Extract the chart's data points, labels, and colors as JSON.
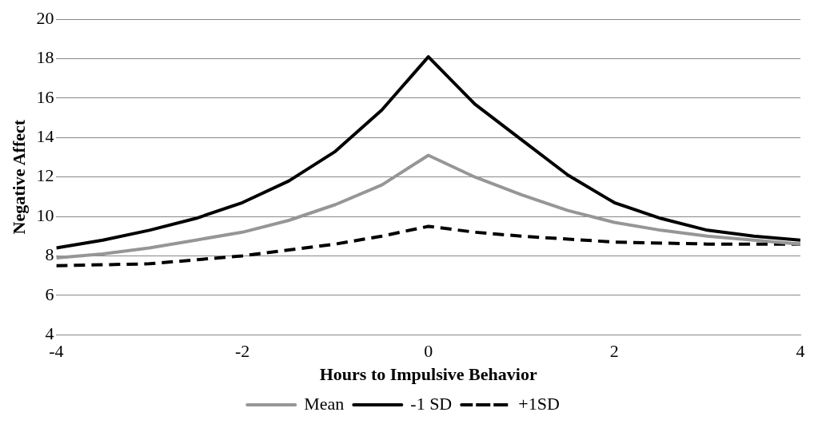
{
  "chart_data": {
    "type": "line",
    "xlabel": "Hours to Impulsive Behavior",
    "ylabel": "Negative Affect",
    "xlim": [
      -4,
      4
    ],
    "xticks": [
      -4,
      -2,
      0,
      2,
      4
    ],
    "ylim": [
      4,
      20
    ],
    "yticks": [
      4,
      6,
      8,
      10,
      12,
      14,
      16,
      18,
      20
    ],
    "grid": "y",
    "legend": "bottom",
    "marker": "none",
    "series": [
      {
        "name": "Mean",
        "color": "#969696",
        "line_style": "solid",
        "x": [
          -4,
          -3.5,
          -3,
          -2.5,
          -2,
          -1.5,
          -1,
          -0.5,
          0,
          0.5,
          1,
          1.5,
          2,
          2.5,
          3,
          3.5,
          4
        ],
        "values": [
          7.9,
          8.1,
          8.4,
          8.8,
          9.2,
          9.8,
          10.6,
          11.6,
          13.1,
          12.0,
          11.1,
          10.3,
          9.7,
          9.3,
          9.0,
          8.8,
          8.6
        ]
      },
      {
        "name": "-1 SD",
        "color": "#000000",
        "line_style": "solid",
        "x": [
          -4,
          -3.5,
          -3,
          -2.5,
          -2,
          -1.5,
          -1,
          -0.5,
          0,
          0.5,
          1,
          1.5,
          2,
          2.5,
          3,
          3.5,
          4
        ],
        "values": [
          8.4,
          8.8,
          9.3,
          9.9,
          10.7,
          11.8,
          13.3,
          15.4,
          18.1,
          15.7,
          13.9,
          12.1,
          10.7,
          9.9,
          9.3,
          9.0,
          8.8
        ]
      },
      {
        "name": "+1SD",
        "color": "#000000",
        "line_style": "dashed",
        "x": [
          -4,
          -3,
          -2,
          -1,
          -0.5,
          0,
          0.5,
          1,
          2,
          3,
          4
        ],
        "values": [
          7.5,
          7.6,
          8.0,
          8.6,
          9.0,
          9.5,
          9.2,
          9.0,
          8.7,
          8.6,
          8.6
        ]
      }
    ]
  }
}
